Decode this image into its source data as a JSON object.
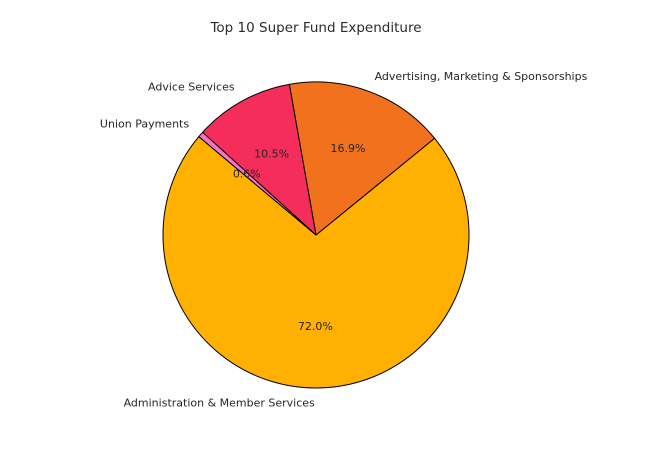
{
  "figure": {
    "background": "#ffffff"
  },
  "chart_data": {
    "type": "pie",
    "title": "Top 10 Super Fund Expenditure",
    "slices": [
      {
        "label": "Administration & Member Services",
        "value": 72.0,
        "pct_label": "72.0%",
        "color": "#FFB000"
      },
      {
        "label": "Advertising, Marketing & Sponsorships",
        "value": 16.9,
        "pct_label": "16.9%",
        "color": "#F1711D"
      },
      {
        "label": "Advice Services",
        "value": 10.5,
        "pct_label": "10.5%",
        "color": "#F42D5A"
      },
      {
        "label": "Union Payments",
        "value": 0.6,
        "pct_label": "0.6%",
        "color": "#F573CD"
      }
    ],
    "layout": {
      "start_angle_deg": 140,
      "counterclockwise": true,
      "label_distance": 1.1,
      "pct_distance": 0.6,
      "edge_color": "#000000",
      "text_color": "#262626",
      "legend": "none",
      "grid": false
    }
  }
}
